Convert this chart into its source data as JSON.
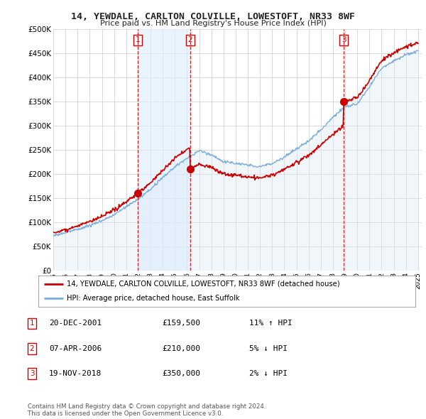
{
  "title": "14, YEWDALE, CARLTON COLVILLE, LOWESTOFT, NR33 8WF",
  "subtitle": "Price paid vs. HM Land Registry's House Price Index (HPI)",
  "ylim": [
    0,
    500000
  ],
  "yticks": [
    0,
    50000,
    100000,
    150000,
    200000,
    250000,
    300000,
    350000,
    400000,
    450000,
    500000
  ],
  "ytick_labels": [
    "£0",
    "£50K",
    "£100K",
    "£150K",
    "£200K",
    "£250K",
    "£300K",
    "£350K",
    "£400K",
    "£450K",
    "£500K"
  ],
  "sales": [
    {
      "year": 2001.97,
      "price": 159500,
      "label": "1"
    },
    {
      "year": 2006.27,
      "price": 210000,
      "label": "2"
    },
    {
      "year": 2018.89,
      "price": 350000,
      "label": "3"
    }
  ],
  "sale_line_color": "#cc0000",
  "hpi_line_color": "#7aacdc",
  "hpi_fill_color": "#d8e8f5",
  "shade_color": "#ddeeff",
  "legend_entries": [
    "14, YEWDALE, CARLTON COLVILLE, LOWESTOFT, NR33 8WF (detached house)",
    "HPI: Average price, detached house, East Suffolk"
  ],
  "table_rows": [
    {
      "num": "1",
      "date": "20-DEC-2001",
      "price": "£159,500",
      "change": "11% ↑ HPI"
    },
    {
      "num": "2",
      "date": "07-APR-2006",
      "price": "£210,000",
      "change": "5% ↓ HPI"
    },
    {
      "num": "3",
      "date": "19-NOV-2018",
      "price": "£350,000",
      "change": "2% ↓ HPI"
    }
  ],
  "footer": "Contains HM Land Registry data © Crown copyright and database right 2024.\nThis data is licensed under the Open Government Licence v3.0.",
  "bg_color": "#ffffff",
  "grid_color": "#cccccc",
  "vline_color": "#cc0000"
}
